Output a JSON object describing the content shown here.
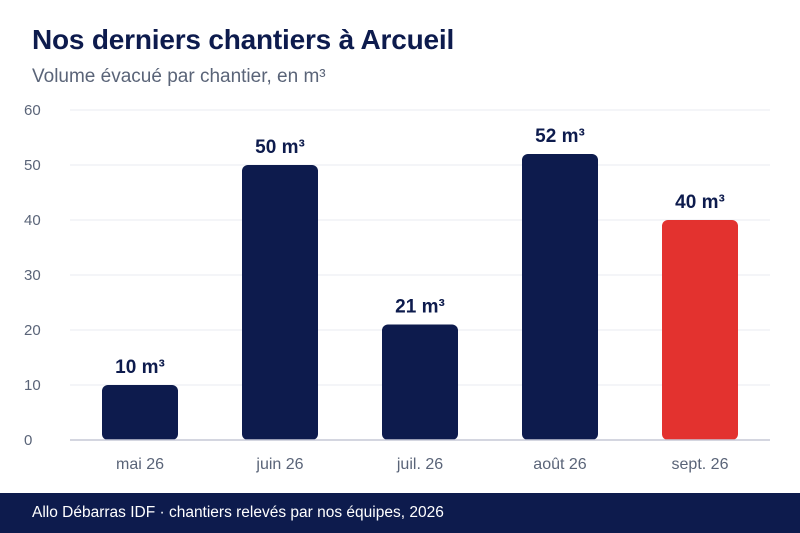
{
  "title": "Nos derniers chantiers à Arcueil",
  "subtitle": "Volume évacué par chantier, en m³",
  "footer": "Allo Débarras IDF · chantiers relevés par nos équipes, 2026",
  "colors": {
    "bar": "#0d1b4d",
    "highlight": "#e3322f",
    "grid": "#e9ebf0",
    "axis": "#c5c8d6",
    "tick": "#5a6478",
    "label": "#0d1b4d"
  },
  "chart_data": {
    "type": "bar",
    "categories": [
      "mai 26",
      "juin 26",
      "juil. 26",
      "août 26",
      "sept. 26"
    ],
    "values": [
      10,
      50,
      21,
      52,
      40
    ],
    "value_labels": [
      "10 m³",
      "50 m³",
      "21 m³",
      "52 m³",
      "40 m³"
    ],
    "highlight_index": 4,
    "ylim": [
      0,
      60
    ],
    "yticks": [
      0,
      10,
      20,
      30,
      40,
      50,
      60
    ],
    "grid": true,
    "title": "Nos derniers chantiers à Arcueil",
    "subtitle": "Volume évacué par chantier, en m³"
  }
}
